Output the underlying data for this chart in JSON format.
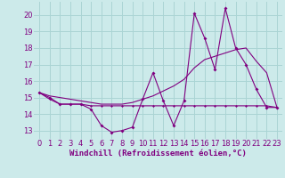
{
  "background_color": "#cceaea",
  "line_color": "#800080",
  "grid_color": "#aad4d4",
  "xlabel": "Windchill (Refroidissement éolien,°C)",
  "xlabel_fontsize": 6.5,
  "tick_fontsize": 6,
  "ylim": [
    12.5,
    20.8
  ],
  "xlim": [
    -0.5,
    23.5
  ],
  "yticks": [
    13,
    14,
    15,
    16,
    17,
    18,
    19,
    20
  ],
  "xticks": [
    0,
    1,
    2,
    3,
    4,
    5,
    6,
    7,
    8,
    9,
    10,
    11,
    12,
    13,
    14,
    15,
    16,
    17,
    18,
    19,
    20,
    21,
    22,
    23
  ],
  "line1_x": [
    0,
    1,
    2,
    3,
    4,
    5,
    6,
    7,
    8,
    9,
    10,
    11,
    12,
    13,
    14,
    15,
    16,
    17,
    18,
    19,
    20,
    21,
    22,
    23
  ],
  "line1_y": [
    15.3,
    15.0,
    14.6,
    14.6,
    14.6,
    14.3,
    13.3,
    12.9,
    13.0,
    13.2,
    14.9,
    16.5,
    14.8,
    13.3,
    14.8,
    20.1,
    18.6,
    16.7,
    20.4,
    18.0,
    17.0,
    15.5,
    14.4,
    14.4
  ],
  "line2_x": [
    0,
    1,
    2,
    3,
    4,
    5,
    6,
    7,
    8,
    9,
    10,
    11,
    12,
    13,
    14,
    15,
    16,
    17,
    18,
    19,
    20,
    21,
    22,
    23
  ],
  "line2_y": [
    15.3,
    15.1,
    15.0,
    14.9,
    14.8,
    14.7,
    14.6,
    14.6,
    14.6,
    14.7,
    14.9,
    15.1,
    15.4,
    15.7,
    16.1,
    16.8,
    17.3,
    17.5,
    17.7,
    17.9,
    18.0,
    17.2,
    16.5,
    14.4
  ],
  "line3_x": [
    0,
    1,
    2,
    3,
    4,
    5,
    6,
    7,
    8,
    9,
    10,
    11,
    12,
    13,
    14,
    15,
    16,
    17,
    18,
    19,
    20,
    21,
    22,
    23
  ],
  "line3_y": [
    15.3,
    14.9,
    14.6,
    14.6,
    14.6,
    14.5,
    14.5,
    14.5,
    14.5,
    14.5,
    14.5,
    14.5,
    14.5,
    14.5,
    14.5,
    14.5,
    14.5,
    14.5,
    14.5,
    14.5,
    14.5,
    14.5,
    14.5,
    14.4
  ]
}
